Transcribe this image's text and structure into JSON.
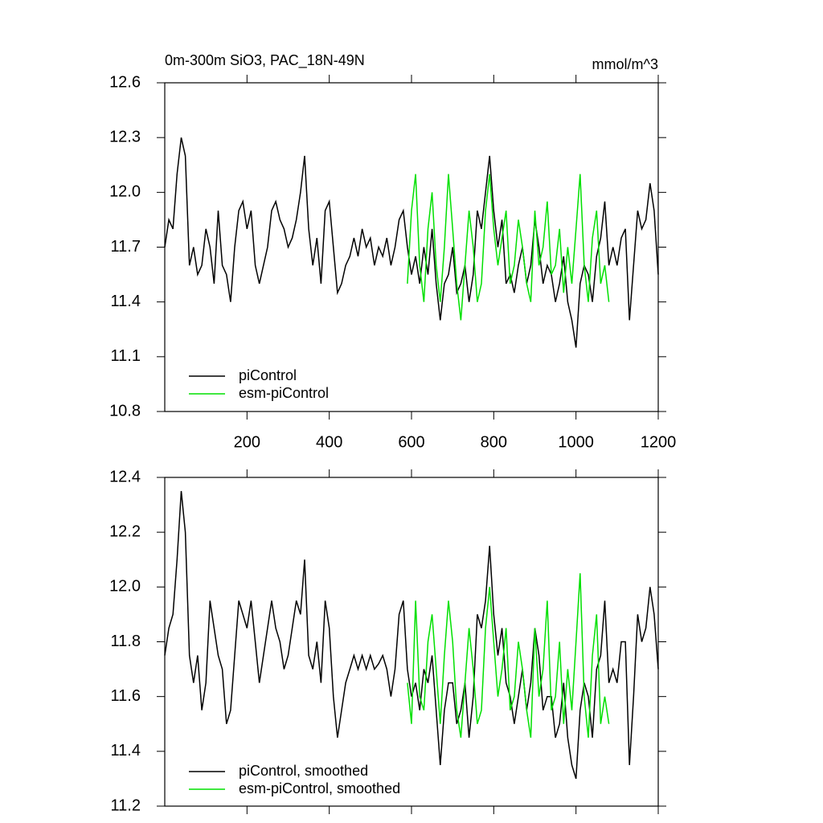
{
  "chart_data": [
    {
      "type": "line",
      "title": "0m-300m SiO3, PAC_18N-49N",
      "unit_label": "mmol/m^3",
      "x": [
        0,
        10,
        20,
        30,
        40,
        50,
        60,
        70,
        80,
        90,
        100,
        110,
        120,
        130,
        140,
        150,
        160,
        170,
        180,
        190,
        200,
        210,
        220,
        230,
        240,
        250,
        260,
        270,
        280,
        290,
        300,
        310,
        320,
        330,
        340,
        350,
        360,
        370,
        380,
        390,
        400,
        410,
        420,
        430,
        440,
        450,
        460,
        470,
        480,
        490,
        500,
        510,
        520,
        530,
        540,
        550,
        560,
        570,
        580,
        590,
        600,
        610,
        620,
        630,
        640,
        650,
        660,
        670,
        680,
        690,
        700,
        710,
        720,
        730,
        740,
        750,
        760,
        770,
        780,
        790,
        800,
        810,
        820,
        830,
        840,
        850,
        860,
        870,
        880,
        890,
        900,
        910,
        920,
        930,
        940,
        950,
        960,
        970,
        980,
        990,
        1000,
        1010,
        1020,
        1030,
        1040,
        1050,
        1060,
        1070,
        1080,
        1090,
        1100,
        1110,
        1120,
        1130,
        1140,
        1150,
        1160,
        1170,
        1180,
        1190,
        1200
      ],
      "series": [
        {
          "name": "piControl",
          "color": "#000000",
          "values": [
            11.7,
            11.85,
            11.8,
            12.1,
            12.3,
            12.2,
            11.6,
            11.7,
            11.55,
            11.6,
            11.8,
            11.7,
            11.5,
            11.9,
            11.6,
            11.55,
            11.4,
            11.7,
            11.9,
            11.95,
            11.8,
            11.9,
            11.6,
            11.5,
            11.6,
            11.7,
            11.9,
            11.95,
            11.85,
            11.8,
            11.7,
            11.75,
            11.85,
            12.0,
            12.2,
            11.8,
            11.6,
            11.75,
            11.5,
            11.9,
            11.95,
            11.7,
            11.45,
            11.5,
            11.6,
            11.65,
            11.75,
            11.65,
            11.8,
            11.7,
            11.75,
            11.6,
            11.7,
            11.65,
            11.75,
            11.6,
            11.7,
            11.85,
            11.9,
            11.7,
            11.55,
            11.65,
            11.5,
            11.7,
            11.55,
            11.8,
            11.5,
            11.3,
            11.5,
            11.55,
            11.7,
            11.45,
            11.5,
            11.6,
            11.4,
            11.55,
            11.9,
            11.8,
            12.0,
            12.2,
            11.9,
            11.7,
            11.85,
            11.5,
            11.55,
            11.45,
            11.6,
            11.7,
            11.5,
            11.6,
            11.85,
            11.7,
            11.5,
            11.6,
            11.55,
            11.4,
            11.5,
            11.65,
            11.4,
            11.3,
            11.15,
            11.5,
            11.6,
            11.55,
            11.4,
            11.65,
            11.75,
            11.95,
            11.6,
            11.7,
            11.6,
            11.75,
            11.8,
            11.3,
            11.6,
            11.9,
            11.8,
            11.85,
            12.05,
            11.9,
            11.55
          ]
        },
        {
          "name": "esm-piControl",
          "color": "#00e000",
          "values": [
            null,
            null,
            null,
            null,
            null,
            null,
            null,
            null,
            null,
            null,
            null,
            null,
            null,
            null,
            null,
            null,
            null,
            null,
            null,
            null,
            null,
            null,
            null,
            null,
            null,
            null,
            null,
            null,
            null,
            null,
            null,
            null,
            null,
            null,
            null,
            null,
            null,
            null,
            null,
            null,
            null,
            null,
            null,
            null,
            null,
            null,
            null,
            null,
            null,
            null,
            null,
            null,
            null,
            null,
            null,
            null,
            null,
            null,
            null,
            11.5,
            11.9,
            12.1,
            11.6,
            11.4,
            11.8,
            12.0,
            11.6,
            11.4,
            11.7,
            12.1,
            11.8,
            11.5,
            11.3,
            11.6,
            11.9,
            11.7,
            11.4,
            11.5,
            11.9,
            12.1,
            11.8,
            11.6,
            11.75,
            11.9,
            11.5,
            11.6,
            11.85,
            11.7,
            11.5,
            11.4,
            11.9,
            11.6,
            11.7,
            11.95,
            11.55,
            11.6,
            11.8,
            11.45,
            11.7,
            11.5,
            11.8,
            12.1,
            11.6,
            11.4,
            11.75,
            11.9,
            11.5,
            11.6,
            11.4,
            null,
            null,
            null,
            null,
            null,
            null,
            null,
            null,
            null,
            null,
            null,
            null
          ]
        }
      ],
      "xlim": [
        0,
        1200
      ],
      "xticks": [
        200,
        400,
        600,
        800,
        1000,
        1200
      ],
      "ylim": [
        10.8,
        12.6
      ],
      "yticks": [
        10.8,
        11.1,
        11.4,
        11.7,
        {
          "value": 12,
          "label": "12.0"
        },
        12.3,
        12.6
      ]
    },
    {
      "type": "line",
      "x": [
        0,
        10,
        20,
        30,
        40,
        50,
        60,
        70,
        80,
        90,
        100,
        110,
        120,
        130,
        140,
        150,
        160,
        170,
        180,
        190,
        200,
        210,
        220,
        230,
        240,
        250,
        260,
        270,
        280,
        290,
        300,
        310,
        320,
        330,
        340,
        350,
        360,
        370,
        380,
        390,
        400,
        410,
        420,
        430,
        440,
        450,
        460,
        470,
        480,
        490,
        500,
        510,
        520,
        530,
        540,
        550,
        560,
        570,
        580,
        590,
        600,
        610,
        620,
        630,
        640,
        650,
        660,
        670,
        680,
        690,
        700,
        710,
        720,
        730,
        740,
        750,
        760,
        770,
        780,
        790,
        800,
        810,
        820,
        830,
        840,
        850,
        860,
        870,
        880,
        890,
        900,
        910,
        920,
        930,
        940,
        950,
        960,
        970,
        980,
        990,
        1000,
        1010,
        1020,
        1030,
        1040,
        1050,
        1060,
        1070,
        1080,
        1090,
        1100,
        1110,
        1120,
        1130,
        1140,
        1150,
        1160,
        1170,
        1180,
        1190,
        1200
      ],
      "series": [
        {
          "name": "piControl, smoothed",
          "color": "#000000",
          "values": [
            11.75,
            11.85,
            11.9,
            12.1,
            12.35,
            12.2,
            11.75,
            11.65,
            11.75,
            11.55,
            11.65,
            11.95,
            11.85,
            11.75,
            11.7,
            11.5,
            11.55,
            11.75,
            11.95,
            11.9,
            11.85,
            11.95,
            11.8,
            11.65,
            11.75,
            11.85,
            11.95,
            11.85,
            11.8,
            11.7,
            11.75,
            11.85,
            11.95,
            11.9,
            12.1,
            11.75,
            11.7,
            11.8,
            11.65,
            11.95,
            11.85,
            11.6,
            11.45,
            11.55,
            11.65,
            11.7,
            11.75,
            11.7,
            11.75,
            11.7,
            11.75,
            11.7,
            11.72,
            11.75,
            11.7,
            11.6,
            11.7,
            11.9,
            11.95,
            11.7,
            11.6,
            11.65,
            11.55,
            11.7,
            11.65,
            11.75,
            11.55,
            11.35,
            11.55,
            11.65,
            11.65,
            11.5,
            11.55,
            11.65,
            11.45,
            11.6,
            11.9,
            11.85,
            11.95,
            12.15,
            11.9,
            11.75,
            11.85,
            11.65,
            11.6,
            11.5,
            11.6,
            11.7,
            11.55,
            11.65,
            11.85,
            11.75,
            11.55,
            11.6,
            11.6,
            11.45,
            11.5,
            11.65,
            11.45,
            11.35,
            11.3,
            11.55,
            11.65,
            11.6,
            11.45,
            11.7,
            11.75,
            11.95,
            11.65,
            11.7,
            11.65,
            11.8,
            11.8,
            11.35,
            11.6,
            11.9,
            11.8,
            11.85,
            12.0,
            11.9,
            11.7
          ]
        },
        {
          "name": "esm-piControl, smoothed",
          "color": "#00e000",
          "values": [
            null,
            null,
            null,
            null,
            null,
            null,
            null,
            null,
            null,
            null,
            null,
            null,
            null,
            null,
            null,
            null,
            null,
            null,
            null,
            null,
            null,
            null,
            null,
            null,
            null,
            null,
            null,
            null,
            null,
            null,
            null,
            null,
            null,
            null,
            null,
            null,
            null,
            null,
            null,
            null,
            null,
            null,
            null,
            null,
            null,
            null,
            null,
            null,
            null,
            null,
            null,
            null,
            null,
            null,
            null,
            null,
            null,
            null,
            null,
            11.65,
            11.5,
            11.95,
            11.6,
            11.55,
            11.8,
            11.9,
            11.7,
            11.5,
            11.75,
            11.95,
            11.8,
            11.55,
            11.45,
            11.65,
            11.85,
            11.7,
            11.5,
            11.55,
            11.85,
            12.0,
            11.8,
            11.6,
            11.7,
            11.85,
            11.55,
            11.6,
            11.8,
            11.7,
            11.55,
            11.45,
            11.85,
            11.6,
            11.7,
            11.95,
            11.55,
            11.6,
            11.8,
            11.5,
            11.7,
            11.55,
            11.8,
            12.05,
            11.6,
            11.45,
            11.75,
            11.9,
            11.5,
            11.6,
            11.5,
            null,
            null,
            null,
            null,
            null,
            null,
            null,
            null,
            null,
            null,
            null,
            null
          ]
        }
      ],
      "xlim": [
        0,
        1200
      ],
      "xticks": [
        200,
        400,
        600,
        800,
        1000,
        1200
      ],
      "ylim": [
        11.2,
        12.4
      ],
      "yticks": [
        11.2,
        11.4,
        11.6,
        11.8,
        {
          "value": 12,
          "label": "12.0"
        },
        12.2,
        12.4
      ]
    }
  ]
}
